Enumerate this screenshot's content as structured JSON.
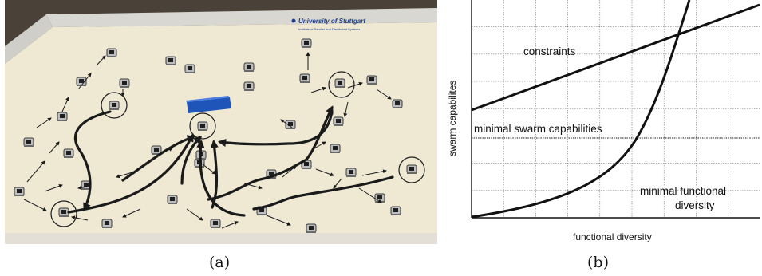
{
  "panel_a": {
    "caption": "(a)",
    "arena_sign": {
      "line1": "University of Stuttgart",
      "line2": "Institute of Parallel and Distributed Systems"
    },
    "colors": {
      "floor": "#efe9d4",
      "wall": "#c9c8c2",
      "block": "#1f55b8",
      "arrow": "#1a1a1a"
    }
  },
  "panel_b": {
    "caption": "(b)",
    "xlabel": "functional diversity",
    "ylabel": "swarm capabilites",
    "labels": {
      "constraints": "constraints",
      "min_swarm": "minimal swarm capabilities",
      "min_func_1": "minimal functional",
      "min_func_2": "diversity"
    },
    "grid": true,
    "ticks": false
  }
}
